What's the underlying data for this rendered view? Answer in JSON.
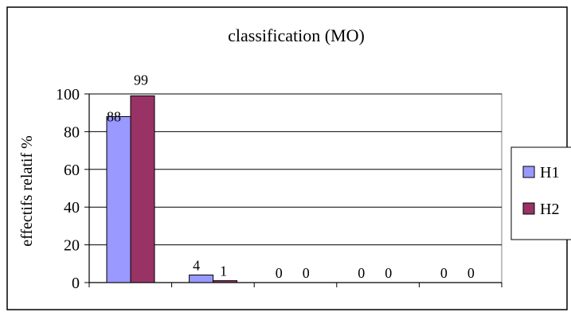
{
  "chart_data": {
    "type": "bar",
    "title": "classification (MO)",
    "xlabel": "",
    "ylabel": "effectifs relatif %",
    "categories": [
      "",
      "",
      "",
      "",
      ""
    ],
    "series": [
      {
        "name": "H1",
        "values": [
          88,
          4,
          0,
          0,
          0
        ],
        "color": "#9999ff"
      },
      {
        "name": "H2",
        "values": [
          99,
          1,
          0,
          0,
          0
        ],
        "color": "#993366"
      }
    ],
    "ylim": [
      0,
      100
    ],
    "yticks": [
      0,
      20,
      40,
      60,
      80,
      100
    ],
    "grid": true,
    "legend": "right",
    "plot_background": "#ffffff"
  }
}
